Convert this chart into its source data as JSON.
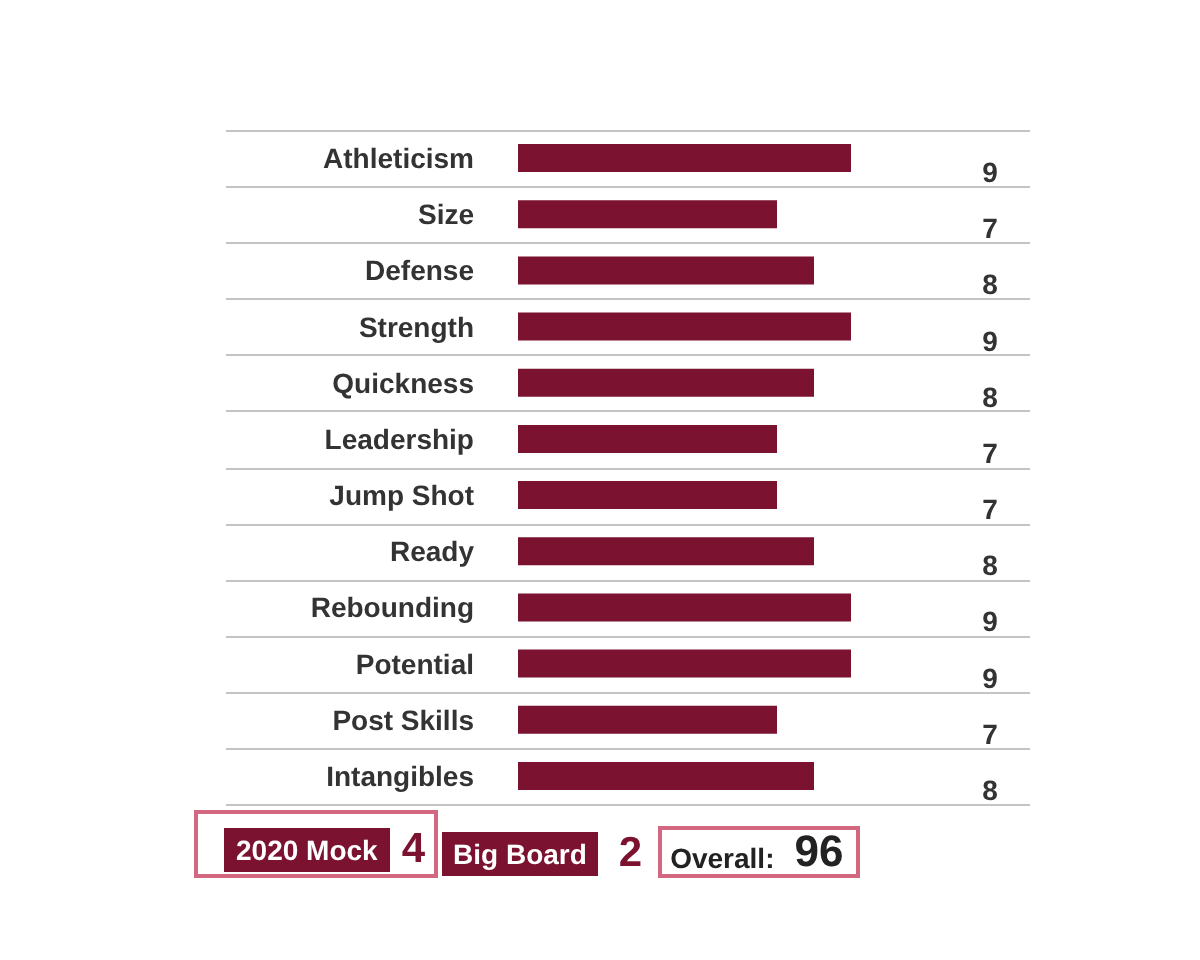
{
  "chart_data": {
    "type": "bar",
    "orientation": "horizontal",
    "categories": [
      "Athleticism",
      "Size",
      "Defense",
      "Strength",
      "Quickness",
      "Leadership",
      "Jump Shot",
      "Ready",
      "Rebounding",
      "Potential",
      "Post Skills",
      "Intangibles"
    ],
    "values": [
      9,
      7,
      8,
      9,
      8,
      7,
      7,
      8,
      9,
      9,
      7,
      8
    ],
    "color": "#7b1230",
    "data_labels": true,
    "grid": "y",
    "tick_labels": "y",
    "annotations": [
      "2020 Mock",
      "4",
      "Big Board",
      "2",
      "Overall:",
      "96"
    ]
  }
}
